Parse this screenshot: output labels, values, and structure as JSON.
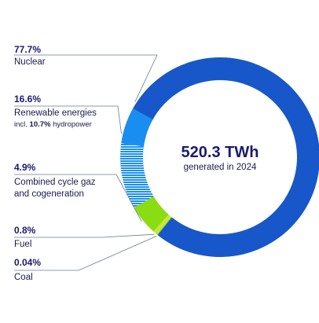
{
  "colors": {
    "nuclear": "#1757c9",
    "renewables": "#1a8ef0",
    "hydro_stripe": "#1a8ef0",
    "gas": "#8bdc12",
    "fuel": "#c6e835",
    "coal": "#2f9a6e",
    "text": "#1a1a6e",
    "leader": "#6b7a90"
  },
  "center": {
    "value": "520.3 TWh",
    "caption": "generated in 2024"
  },
  "labels": {
    "nuclear": {
      "pct": "77.7%",
      "name": "Nuclear"
    },
    "renewables": {
      "pct": "16.6%",
      "name": "Renewable energies",
      "sub_prefix": "incl. ",
      "sub_bold": "10.7%",
      "sub_suffix": " hydropower"
    },
    "gas": {
      "pct": "4.9%",
      "name_line1": "Combined cycle gaz",
      "name_line2": "and cogeneration"
    },
    "fuel": {
      "pct": "0.8%",
      "name": "Fuel"
    },
    "coal": {
      "pct": "0.04%",
      "name": "Coal"
    }
  },
  "chart_data": {
    "type": "pie",
    "title": "",
    "total_label": "520.3 TWh",
    "slices": [
      {
        "key": "nuclear",
        "name": "Nuclear",
        "value": 77.7
      },
      {
        "key": "coal",
        "name": "Coal",
        "value": 0.04
      },
      {
        "key": "fuel",
        "name": "Fuel",
        "value": 0.8
      },
      {
        "key": "gas",
        "name": "Combined cycle gaz and cogeneration",
        "value": 4.9
      },
      {
        "key": "renewables",
        "name": "Renewable energies",
        "value": 16.6,
        "sub": [
          {
            "name": "hydropower",
            "value": 10.7
          }
        ]
      }
    ]
  }
}
